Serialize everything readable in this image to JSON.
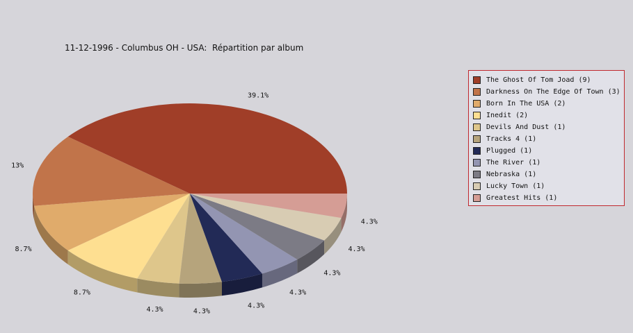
{
  "chart_data": {
    "type": "pie",
    "title": "11-12-1996 - Columbus OH - USA:  Répartition par album",
    "legend_position": "right",
    "slices": [
      {
        "name": "The Ghost Of Tom Joad",
        "count": 9,
        "percent_label": "39.1%",
        "legend_label": "The Ghost Of Tom Joad (9)",
        "color": "#a03e28"
      },
      {
        "name": "Darkness On The Edge Of Town",
        "count": 3,
        "percent_label": "13%",
        "legend_label": "Darkness On The Edge Of Town (3)",
        "color": "#c1744a"
      },
      {
        "name": "Born In The USA",
        "count": 2,
        "percent_label": "8.7%",
        "legend_label": "Born In The USA (2)",
        "color": "#e0ab6b"
      },
      {
        "name": "Inedit",
        "count": 2,
        "percent_label": "8.7%",
        "legend_label": "Inedit (2)",
        "color": "#fedf91"
      },
      {
        "name": "Devils And Dust",
        "count": 1,
        "percent_label": "4.3%",
        "legend_label": "Devils And Dust (1)",
        "color": "#dec68b"
      },
      {
        "name": "Tracks 4",
        "count": 1,
        "percent_label": "4.3%",
        "legend_label": "Tracks 4 (1)",
        "color": "#b6a47c"
      },
      {
        "name": "Plugged",
        "count": 1,
        "percent_label": "4.3%",
        "legend_label": "Plugged (1)",
        "color": "#222a56"
      },
      {
        "name": "The River",
        "count": 1,
        "percent_label": "4.3%",
        "legend_label": "The River (1)",
        "color": "#9395b2"
      },
      {
        "name": "Nebraska",
        "count": 1,
        "percent_label": "4.3%",
        "legend_label": "Nebraska (1)",
        "color": "#7c7b85"
      },
      {
        "name": "Lucky Town",
        "count": 1,
        "percent_label": "4.3%",
        "legend_label": "Lucky Town (1)",
        "color": "#d8ccb3"
      },
      {
        "name": "Greatest Hits",
        "count": 1,
        "percent_label": "4.3%",
        "legend_label": "Greatest Hits (1)",
        "color": "#d59d95"
      }
    ]
  }
}
